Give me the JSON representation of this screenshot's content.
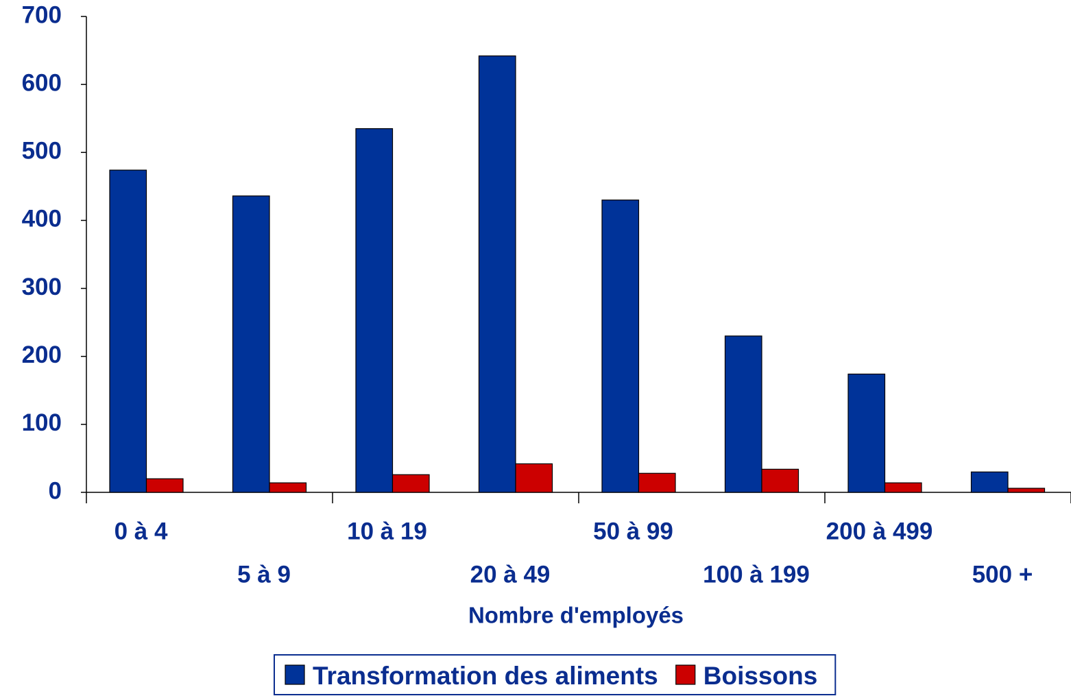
{
  "chart_data": {
    "type": "bar",
    "x_label": "Nombre d'employés",
    "categories": [
      "0 à 4",
      "5 à 9",
      "10 à 19",
      "20 à 49",
      "50 à 99",
      "100 à 199",
      "200 à 499",
      "500 +"
    ],
    "series": [
      {
        "name": "Transformation des aliments",
        "color": "#003399",
        "values": [
          474,
          436,
          535,
          642,
          430,
          230,
          174,
          30
        ]
      },
      {
        "name": "Boissons",
        "color": "#cc0000",
        "values": [
          20,
          14,
          26,
          42,
          28,
          34,
          14,
          6
        ]
      }
    ],
    "ylim": [
      0,
      700
    ],
    "yticks": [
      0,
      100,
      200,
      300,
      400,
      500,
      600,
      700
    ],
    "legend": "bottom"
  }
}
